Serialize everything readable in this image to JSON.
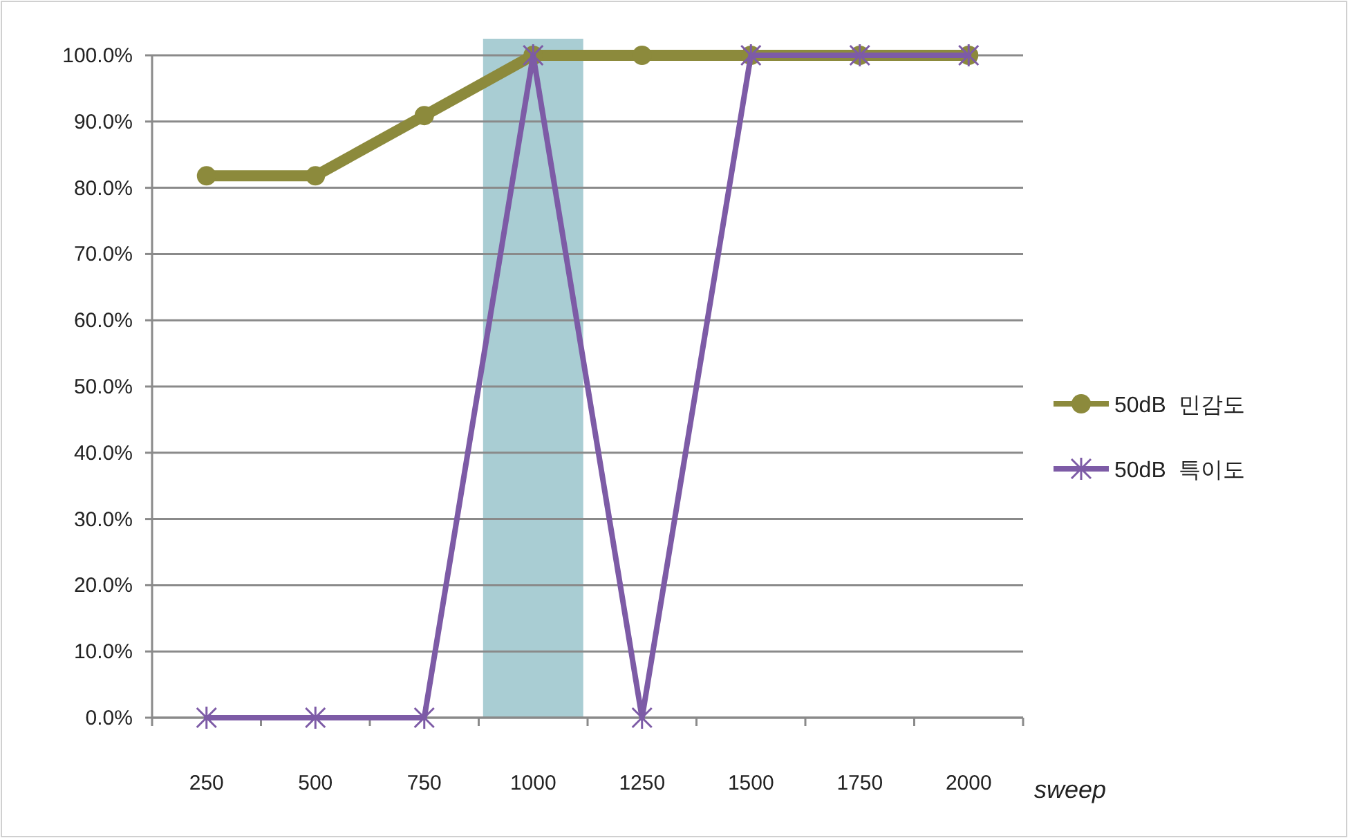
{
  "chart_data": {
    "type": "line",
    "xlabel": "sweep",
    "categories": [
      "250",
      "500",
      "750",
      "1000",
      "1250",
      "1500",
      "1750",
      "2000"
    ],
    "series": [
      {
        "name": "50dB  민감도",
        "color": "#8c8a3c",
        "marker": "circle",
        "values": [
          81.8,
          81.8,
          90.9,
          100,
          100,
          100,
          100,
          100
        ]
      },
      {
        "name": "50dB  특이도",
        "color": "#7d5ba6",
        "marker": "cross",
        "values": [
          0,
          0,
          0,
          100,
          0,
          100,
          100,
          100
        ]
      }
    ],
    "ylim": [
      0,
      100
    ],
    "yticks": [
      {
        "value": 0,
        "label": "0.0%"
      },
      {
        "value": 10,
        "label": "10.0%"
      },
      {
        "value": 20,
        "label": "20.0%"
      },
      {
        "value": 30,
        "label": "30.0%"
      },
      {
        "value": 40,
        "label": "40.0%"
      },
      {
        "value": 50,
        "label": "50.0%"
      },
      {
        "value": 60,
        "label": "60.0%"
      },
      {
        "value": 70,
        "label": "70.0%"
      },
      {
        "value": 80,
        "label": "80.0%"
      },
      {
        "value": 90,
        "label": "90.0%"
      },
      {
        "value": 100,
        "label": "100.0%"
      }
    ],
    "bands": [
      {
        "axis": "x",
        "from": "1000",
        "to": "1000",
        "color": "#a9cdd3"
      }
    ],
    "grid": "y",
    "legend": "right"
  }
}
